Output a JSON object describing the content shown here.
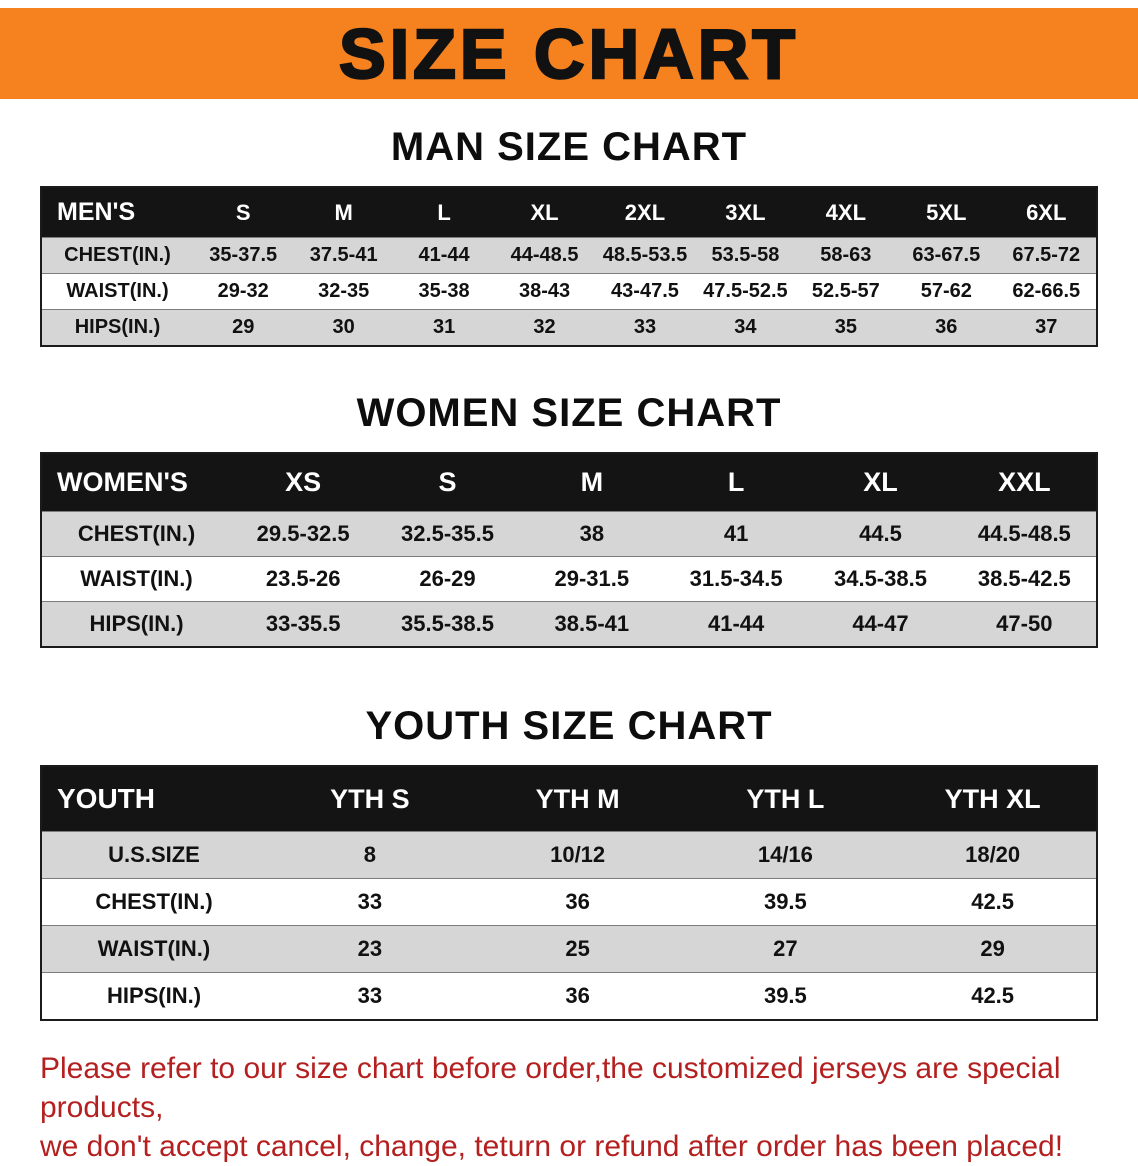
{
  "banner": {
    "title": "SIZE CHART"
  },
  "men": {
    "heading": "MAN SIZE CHART",
    "header": [
      "MEN'S",
      "S",
      "M",
      "L",
      "XL",
      "2XL",
      "3XL",
      "4XL",
      "5XL",
      "6XL"
    ],
    "rows": [
      [
        "CHEST(IN.)",
        "35-37.5",
        "37.5-41",
        "41-44",
        "44-48.5",
        "48.5-53.5",
        "53.5-58",
        "58-63",
        "63-67.5",
        "67.5-72"
      ],
      [
        "WAIST(IN.)",
        "29-32",
        "32-35",
        "35-38",
        "38-43",
        "43-47.5",
        "47.5-52.5",
        "52.5-57",
        "57-62",
        "62-66.5"
      ],
      [
        "HIPS(IN.)",
        "29",
        "30",
        "31",
        "32",
        "33",
        "34",
        "35",
        "36",
        "37"
      ]
    ]
  },
  "women": {
    "heading": "WOMEN SIZE CHART",
    "header": [
      "WOMEN'S",
      "XS",
      "S",
      "M",
      "L",
      "XL",
      "XXL"
    ],
    "rows": [
      [
        "CHEST(IN.)",
        "29.5-32.5",
        "32.5-35.5",
        "38",
        "41",
        "44.5",
        "44.5-48.5"
      ],
      [
        "WAIST(IN.)",
        "23.5-26",
        "26-29",
        "29-31.5",
        "31.5-34.5",
        "34.5-38.5",
        "38.5-42.5"
      ],
      [
        "HIPS(IN.)",
        "33-35.5",
        "35.5-38.5",
        "38.5-41",
        "41-44",
        "44-47",
        "47-50"
      ]
    ]
  },
  "youth": {
    "heading": "YOUTH SIZE CHART",
    "header": [
      "YOUTH",
      "YTH S",
      "YTH M",
      "YTH L",
      "YTH XL"
    ],
    "rows": [
      [
        "U.S.SIZE",
        "8",
        "10/12",
        "14/16",
        "18/20"
      ],
      [
        "CHEST(IN.)",
        "33",
        "36",
        "39.5",
        "42.5"
      ],
      [
        "WAIST(IN.)",
        "23",
        "25",
        "27",
        "29"
      ],
      [
        "HIPS(IN.)",
        "33",
        "36",
        "39.5",
        "42.5"
      ]
    ]
  },
  "disclaimer": {
    "line1": "Please refer to our size chart before order,the customized jerseys are special products,",
    "line2": "we don't accept cancel, change, teturn or refund after order has been placed!"
  },
  "colors": {
    "banner_bg": "#f5821f",
    "header_bg": "#141414",
    "stripe": "#d6d6d6",
    "disclaimer_red": "#b42020"
  }
}
